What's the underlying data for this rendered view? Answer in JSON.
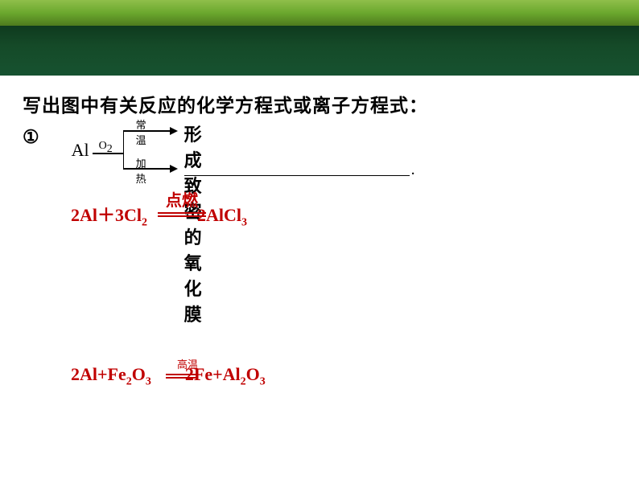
{
  "header": {
    "top_gradient": [
      "#8fbf4a",
      "#4e7a1e"
    ],
    "bottom_gradient": [
      "#0e3a1e",
      "#165230"
    ]
  },
  "prompt": "写出图中有关反应的化学方程式或离子方程式：",
  "item_number": "①",
  "diagram": {
    "reactant": "Al",
    "reagent": "O",
    "reagent_sub": "2",
    "condition_top": "常温",
    "condition_bottom": "加热",
    "result_top": "形成致密的氧化膜",
    "period": "."
  },
  "equation1": {
    "left_a": "2Al＋3Cl",
    "left_sub": "2",
    "condition": "点燃",
    "right_a": "2AlCl",
    "right_sub": "3",
    "color": "#c00000"
  },
  "equation2": {
    "left_a": "2Al+Fe",
    "left_sub1": "2",
    "left_b": "O",
    "left_sub2": "3",
    "condition": "高温",
    "right_a": "2Fe+Al",
    "right_sub1": "2",
    "right_b": "O",
    "right_sub2": "3",
    "color": "#c00000"
  }
}
